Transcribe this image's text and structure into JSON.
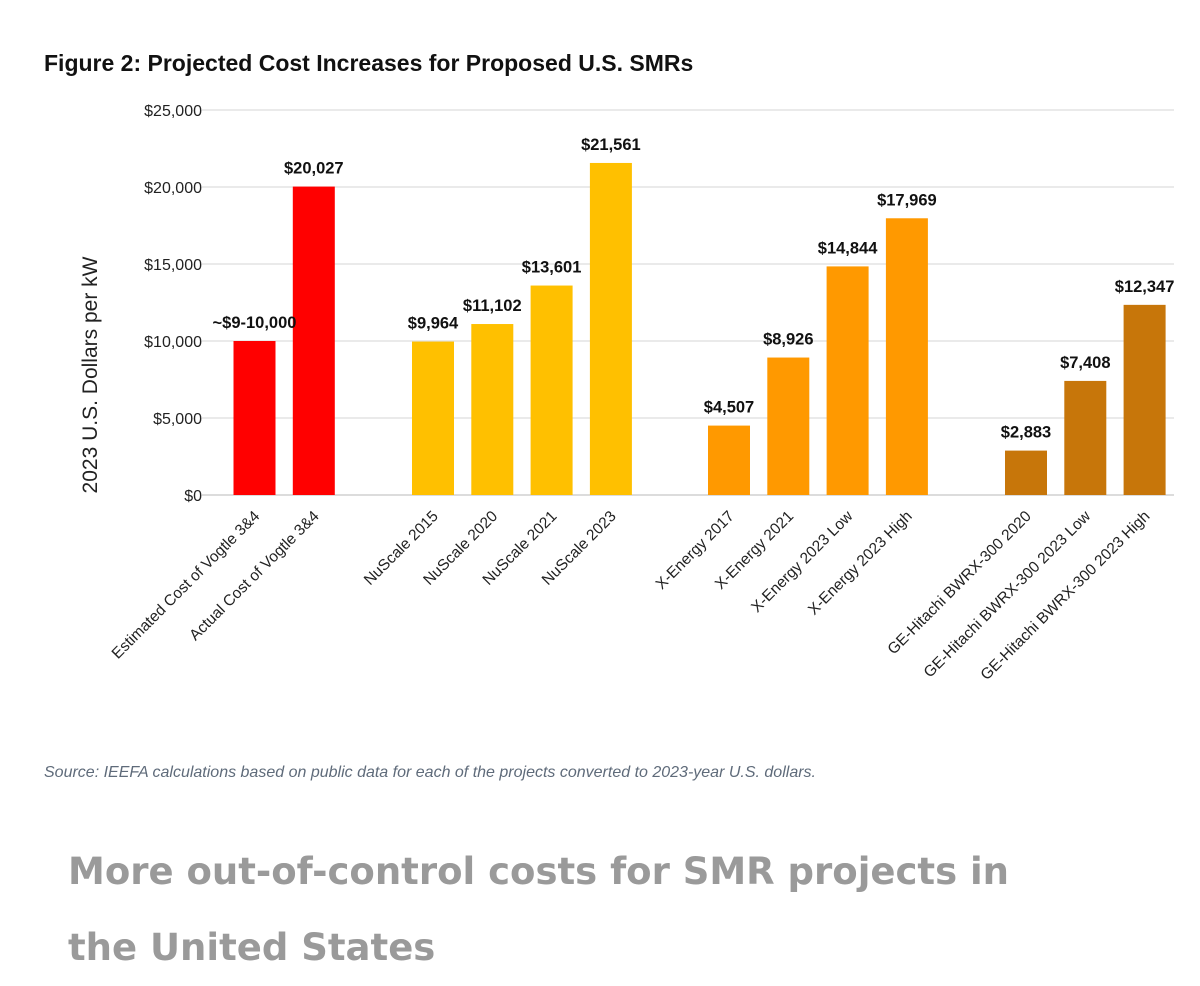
{
  "chart_data": {
    "type": "bar",
    "title": "Figure 2: Projected Cost Increases for Proposed U.S. SMRs",
    "xlabel": "",
    "ylabel": "2023 U.S. Dollars per kW",
    "ylim": [
      0,
      25000
    ],
    "yticks": [
      0,
      5000,
      10000,
      15000,
      20000,
      25000
    ],
    "ytick_labels": [
      "$0",
      "$5,000",
      "$10,000",
      "$15,000",
      "$20,000",
      "$25,000"
    ],
    "grid": true,
    "groups": [
      {
        "name": "Vogtle",
        "color": "#ff0000",
        "categories": [
          "Estimated Cost of Vogtle 3&4",
          "Actual Cost of Vogtle 3&4"
        ],
        "values": [
          10000,
          20027
        ],
        "labels": [
          "~$9-10,000",
          "$20,027"
        ]
      },
      {
        "name": "NuScale",
        "color": "#ffc000",
        "categories": [
          "NuScale 2015",
          "NuScale 2020",
          "NuScale 2021",
          "NuScale 2023"
        ],
        "values": [
          9964,
          11102,
          13601,
          21561
        ],
        "labels": [
          "$9,964",
          "$11,102",
          "$13,601",
          "$21,561"
        ]
      },
      {
        "name": "X-Energy",
        "color": "#ff9900",
        "categories": [
          "X-Energy 2017",
          "X-Energy 2021",
          "X-Energy 2023 Low",
          "X-Energy 2023 High"
        ],
        "values": [
          4507,
          8926,
          14844,
          17969
        ],
        "labels": [
          "$4,507",
          "$8,926",
          "$14,844",
          "$17,969"
        ]
      },
      {
        "name": "GE-Hitachi BWRX-300",
        "color": "#c7760a",
        "categories": [
          "GE-Hitachi BWRX-300 2020",
          "GE-Hitachi BWRX-300 2023 Low",
          "GE-Hitachi BWRX-300 2023 High"
        ],
        "values": [
          2883,
          7408,
          12347
        ],
        "labels": [
          "$2,883",
          "$7,408",
          "$12,347"
        ]
      }
    ],
    "source": "Source: IEEFA calculations based on public data for each of the projects converted to 2023-year U.S. dollars."
  },
  "article": {
    "caption": "More out-of-control costs for SMR projects in the United States"
  }
}
